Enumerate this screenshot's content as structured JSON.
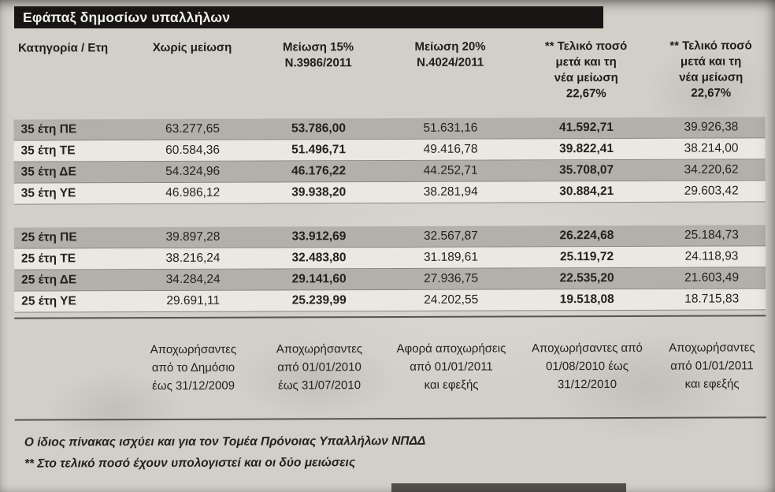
{
  "title": "Εφάπαξ δημοσίων υπαλλήλων",
  "colors": {
    "title_bar": "#171614",
    "title_text": "#f2f1ec",
    "page_background": "#d2cfc8",
    "row_shaded": "#b2b0aa",
    "row_light": "#eae8e2",
    "rule": "#56544f",
    "text": "#23221e"
  },
  "table": {
    "columns": [
      {
        "lines": [
          "Κατηγορία / Ετη"
        ]
      },
      {
        "lines": [
          "Χωρίς μείωση"
        ]
      },
      {
        "lines": [
          "Μείωση 15%",
          "Ν.3986/2011"
        ]
      },
      {
        "lines": [
          "Μείωση 20%",
          "Ν.4024/2011"
        ]
      },
      {
        "lines": [
          "** Τελικό ποσό",
          "μετά και τη",
          "νέα μείωση",
          "22,67%"
        ]
      },
      {
        "lines": [
          "** Τελικό ποσό",
          "μετά και τη",
          "νέα μείωση",
          "22,67%"
        ]
      }
    ],
    "groups": [
      {
        "rows": [
          {
            "label": "35 έτη ΠΕ",
            "values": [
              "63.277,65",
              "53.786,00",
              "51.631,16",
              "41.592,71",
              "39.926,38"
            ]
          },
          {
            "label": "35 έτη ΤΕ",
            "values": [
              "60.584,36",
              "51.496,71",
              "49.416,78",
              "39.822,41",
              "38.214,00"
            ]
          },
          {
            "label": "35 έτη ΔΕ",
            "values": [
              "54.324,96",
              "46.176,22",
              "44.252,71",
              "35.708,07",
              "34.220,62"
            ]
          },
          {
            "label": "35 έτη ΥΕ",
            "values": [
              "46.986,12",
              "39.938,20",
              "38.281,94",
              "30.884,21",
              "29.603,42"
            ]
          }
        ]
      },
      {
        "rows": [
          {
            "label": "25 έτη ΠΕ",
            "values": [
              "39.897,28",
              "33.912,69",
              "32.567,87",
              "26.224,68",
              "25.184,73"
            ]
          },
          {
            "label": "25 έτη ΤΕ",
            "values": [
              "38.216,24",
              "32.483,80",
              "31.189,61",
              "25.119,72",
              "24.118,93"
            ]
          },
          {
            "label": "25 έτη ΔΕ",
            "values": [
              "34.284,24",
              "29.141,60",
              "27.936,75",
              "22.535,20",
              "21.603,49"
            ]
          },
          {
            "label": "25 έτη ΥΕ",
            "values": [
              "29.691,11",
              "25.239,99",
              "24.202,55",
              "19.518,08",
              "18.715,83"
            ]
          }
        ]
      }
    ],
    "column_notes": [
      {
        "lines": [
          "Αποχωρήσαντες",
          "από το Δημόσιο",
          "έως 31/12/2009"
        ]
      },
      {
        "lines": [
          "Αποχωρήσαντες",
          "από 01/01/2010",
          "έως 31/07/2010"
        ]
      },
      {
        "lines": [
          "Αφορά αποχωρήσεις",
          "από 01/01/2011",
          "και εφεξής"
        ]
      },
      {
        "lines": [
          "Αποχωρήσαντες από",
          "01/08/2010 έως",
          "31/12/2010"
        ]
      },
      {
        "lines": [
          "Αποχωρήσαντες",
          "από 01/01/2011",
          "και εφεξής"
        ]
      }
    ]
  },
  "footnotes": [
    "Ο ίδιος πίνακας ισχύει και για τον Τομέα Πρόνοιας Υπαλλήλων ΝΠΔΔ",
    "** Στο τελικό ποσό έχουν υπολογιστεί και οι δύο μειώσεις"
  ]
}
